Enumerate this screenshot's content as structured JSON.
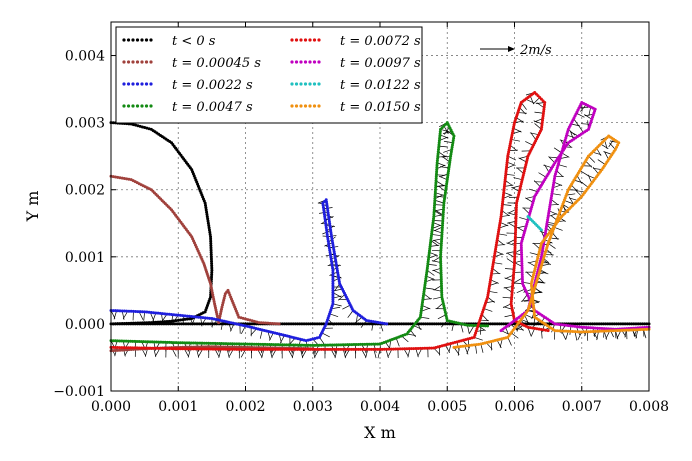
{
  "chart_data": {
    "type": "scatter",
    "xlabel": "X m",
    "ylabel": "Y m",
    "xlim": [
      0.0,
      0.008
    ],
    "ylim": [
      -0.001,
      0.0045
    ],
    "x_ticks": [
      "0.000",
      "0.001",
      "0.002",
      "0.003",
      "0.004",
      "0.005",
      "0.006",
      "0.007",
      "0.008"
    ],
    "y_ticks": [
      "−0.001",
      "0.000",
      "0.001",
      "0.002",
      "0.003",
      "0.004"
    ],
    "x_tick_values": [
      0,
      0.001,
      0.002,
      0.003,
      0.004,
      0.005,
      0.006,
      0.007,
      0.008
    ],
    "y_tick_values": [
      -0.001,
      0,
      0.001,
      0.002,
      0.003,
      0.004
    ],
    "grid": true,
    "legend_position": "top-left",
    "velocity_scale": {
      "label": "2m/s"
    },
    "series": [
      {
        "name": "t < 0 s",
        "color": "#000000",
        "x": [
          0.0,
          0.0003,
          0.0006,
          0.0009,
          0.0012,
          0.0014,
          0.00148,
          0.0015,
          0.00148,
          0.0014,
          0.0012,
          0.0009,
          0.0006,
          0.0003,
          0.0,
          0.002,
          0.003,
          0.004,
          0.005,
          0.006,
          0.007,
          0.008
        ],
        "y": [
          0.003,
          0.00298,
          0.0029,
          0.0027,
          0.0023,
          0.0018,
          0.0013,
          0.0008,
          0.0004,
          0.00018,
          8e-05,
          4e-05,
          2e-05,
          1e-05,
          0.0,
          0.0,
          0.0,
          0.0,
          0.0,
          0.0,
          0.0,
          0.0
        ]
      },
      {
        "name": "t = 0.00045 s",
        "color": "#a0413c",
        "x": [
          0.0,
          0.0003,
          0.0006,
          0.0009,
          0.0012,
          0.00138,
          0.00148,
          0.00154,
          0.00158,
          0.0016,
          0.00165,
          0.0017,
          0.00174,
          0.00178,
          0.0019,
          0.0022,
          0.0025
        ],
        "y": [
          0.0022,
          0.00215,
          0.002,
          0.0017,
          0.0013,
          0.0009,
          0.0006,
          0.0003,
          0.00012,
          2e-05,
          0.00025,
          0.00045,
          0.0005,
          0.0004,
          0.0001,
          2e-05,
          0.0
        ],
        "x2": [
          0.0,
          0.0005,
          0.001,
          0.0015,
          0.002,
          0.0025,
          0.003
        ],
        "y2": [
          -0.0004,
          -0.00037,
          -0.00035,
          -0.00034,
          -0.00035,
          -0.00036,
          -0.00037
        ]
      },
      {
        "name": "t = 0.0022 s",
        "color": "#1f1fdd",
        "x": [
          0.0,
          0.0005,
          0.001,
          0.0015,
          0.002,
          0.0025,
          0.0029,
          0.0031,
          0.0032,
          0.0033,
          0.0033,
          0.00322,
          0.00315,
          0.0032,
          0.00328,
          0.0034,
          0.0036,
          0.0038,
          0.0041
        ],
        "y": [
          0.0002,
          0.00018,
          0.00013,
          8e-05,
          -3e-05,
          -0.00015,
          -0.00025,
          -0.0002,
          0.0,
          0.0003,
          0.0008,
          0.0013,
          0.0018,
          0.00185,
          0.0013,
          0.0006,
          0.0002,
          5e-05,
          0.0
        ]
      },
      {
        "name": "t = 0.0047 s",
        "color": "#138a13",
        "x": [
          0.0,
          0.001,
          0.002,
          0.003,
          0.004,
          0.0044,
          0.0046,
          0.0047,
          0.0048,
          0.00485,
          0.0049,
          0.005,
          0.0051,
          0.00505,
          0.00495,
          0.0049,
          0.00492,
          0.005,
          0.0053,
          0.0056
        ],
        "y": [
          -0.00025,
          -0.00028,
          -0.0003,
          -0.00032,
          -0.0003,
          -0.00015,
          0.0001,
          0.0008,
          0.0016,
          0.0024,
          0.0029,
          0.003,
          0.0028,
          0.0025,
          0.0018,
          0.001,
          0.0004,
          5e-05,
          -2e-05,
          -3e-05
        ]
      },
      {
        "name": "t = 0.0072 s",
        "color": "#e01010",
        "x": [
          0.0,
          0.001,
          0.002,
          0.003,
          0.004,
          0.0048,
          0.0054,
          0.0056,
          0.0058,
          0.0059,
          0.006,
          0.0061,
          0.0063,
          0.00645,
          0.0064,
          0.0062,
          0.00603,
          0.006,
          0.00595,
          0.006,
          0.0062,
          0.0065
        ],
        "y": [
          -0.00035,
          -0.00037,
          -0.00038,
          -0.00038,
          -0.00038,
          -0.00036,
          -0.0002,
          0.0004,
          0.0016,
          0.0025,
          0.003,
          0.0033,
          0.00345,
          0.0033,
          0.0029,
          0.0025,
          0.0018,
          0.0009,
          0.0003,
          5e-05,
          -5e-05,
          -0.0001
        ]
      },
      {
        "name": "t = 0.0097 s",
        "color": "#c000c0",
        "x": [
          0.0058,
          0.0062,
          0.0064,
          0.0066,
          0.0068,
          0.007,
          0.0072,
          0.0071,
          0.0068,
          0.0066,
          0.0063,
          0.0061,
          0.00612,
          0.0063,
          0.0066,
          0.007,
          0.0075,
          0.008
        ],
        "y": [
          -0.0001,
          0.0002,
          0.001,
          0.0022,
          0.0029,
          0.0033,
          0.0032,
          0.0029,
          0.0027,
          0.0024,
          0.0019,
          0.0012,
          0.0006,
          0.0002,
          0.0,
          -5e-05,
          -8e-05,
          -5e-05
        ]
      },
      {
        "name": "t = 0.0122 s",
        "color": "#20c0c0",
        "x": [
          0.0062,
          0.0064
        ],
        "y": [
          0.0016,
          0.0014
        ]
      },
      {
        "name": "t = 0.0150 s",
        "color": "#f09010",
        "x": [
          0.0051,
          0.0055,
          0.0059,
          0.0062,
          0.0065,
          0.0068,
          0.0071,
          0.0074,
          0.00755,
          0.0075,
          0.0073,
          0.007,
          0.0067,
          0.0064,
          0.00625,
          0.0063,
          0.0066,
          0.007,
          0.0075,
          0.008
        ],
        "y": [
          -0.00035,
          -0.0003,
          -0.0002,
          0.0002,
          0.0012,
          0.002,
          0.0025,
          0.0028,
          0.0027,
          0.0026,
          0.0023,
          0.0019,
          0.0016,
          0.0012,
          0.0006,
          0.0001,
          -0.0001,
          -0.00012,
          -0.0001,
          -8e-05
        ]
      }
    ]
  }
}
